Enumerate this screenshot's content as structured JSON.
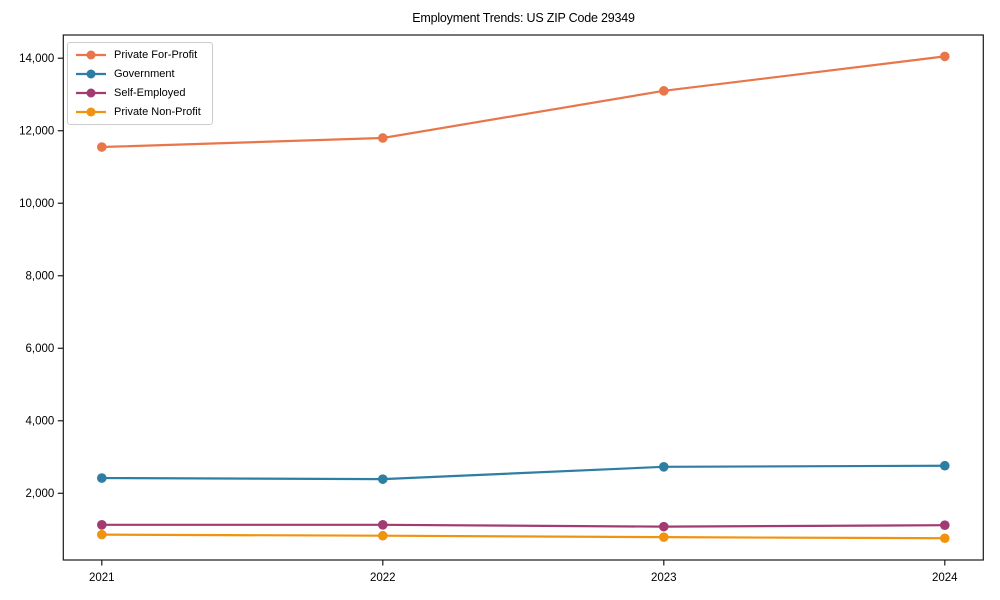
{
  "chart_data": {
    "type": "line",
    "title": "Employment Trends: US ZIP Code 29349",
    "x": [
      2021,
      2022,
      2023,
      2024
    ],
    "x_tick_labels": [
      "2021",
      "2022",
      "2023",
      "2024"
    ],
    "series": [
      {
        "name": "Private For-Profit",
        "color": "#E8764A",
        "values": [
          11550,
          11800,
          13100,
          14050
        ]
      },
      {
        "name": "Government",
        "color": "#2E7EA3",
        "values": [
          2420,
          2390,
          2730,
          2760
        ]
      },
      {
        "name": "Self-Employed",
        "color": "#A23B72",
        "values": [
          1130,
          1130,
          1080,
          1120
        ]
      },
      {
        "name": "Private Non-Profit",
        "color": "#F0940F",
        "values": [
          860,
          830,
          790,
          760
        ]
      }
    ],
    "yticks": [
      2000,
      4000,
      6000,
      8000,
      10000,
      12000,
      14000
    ],
    "ytick_labels": [
      "2,000",
      "4,000",
      "6,000",
      "8,000",
      "10,000",
      "12,000",
      "14,000"
    ],
    "ylim": [
      160,
      14640
    ],
    "xlabel": "",
    "ylabel": "",
    "grid": false,
    "legend_position": "upper-left",
    "marker": "circle",
    "axis_color": "#1a1a1a",
    "text_color": "#000000",
    "background": "#ffffff"
  }
}
